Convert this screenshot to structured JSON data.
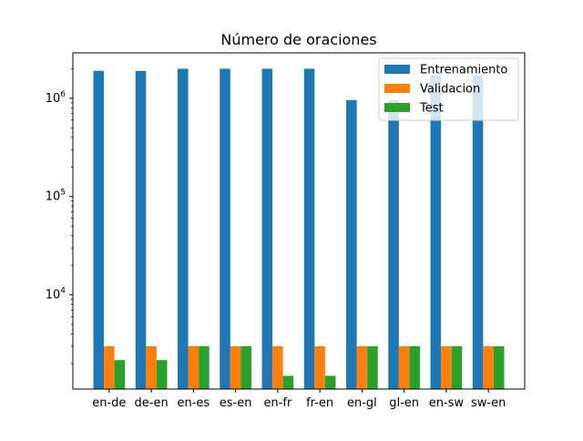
{
  "chart_data": {
    "type": "bar",
    "title": "Número de oraciones",
    "xlabel": "",
    "ylabel": "",
    "yscale": "log",
    "ylim": [
      1100,
      2900000
    ],
    "yticks": [
      {
        "value": 10000,
        "base": "10",
        "exp": "4"
      },
      {
        "value": 100000,
        "base": "10",
        "exp": "5"
      },
      {
        "value": 1000000,
        "base": "10",
        "exp": "6"
      }
    ],
    "grid": false,
    "legend_position": "top-right",
    "categories": [
      "en-de",
      "de-en",
      "en-es",
      "es-en",
      "en-fr",
      "fr-en",
      "en-gl",
      "gl-en",
      "en-sw",
      "sw-en"
    ],
    "series": [
      {
        "name": "Entrenamiento",
        "color": "#1f77b4",
        "values": [
          1900000,
          1900000,
          2000000,
          2000000,
          2000000,
          2000000,
          960000,
          960000,
          1700000,
          1700000
        ]
      },
      {
        "name": "Validacion",
        "color": "#ff7f0e",
        "values": [
          3000,
          3000,
          3000,
          3000,
          3000,
          3000,
          3000,
          3000,
          3000,
          3000
        ]
      },
      {
        "name": "Test",
        "color": "#2ca02c",
        "values": [
          2170,
          2170,
          3000,
          3000,
          1500,
          1500,
          3000,
          3000,
          3000,
          3000
        ]
      }
    ]
  }
}
